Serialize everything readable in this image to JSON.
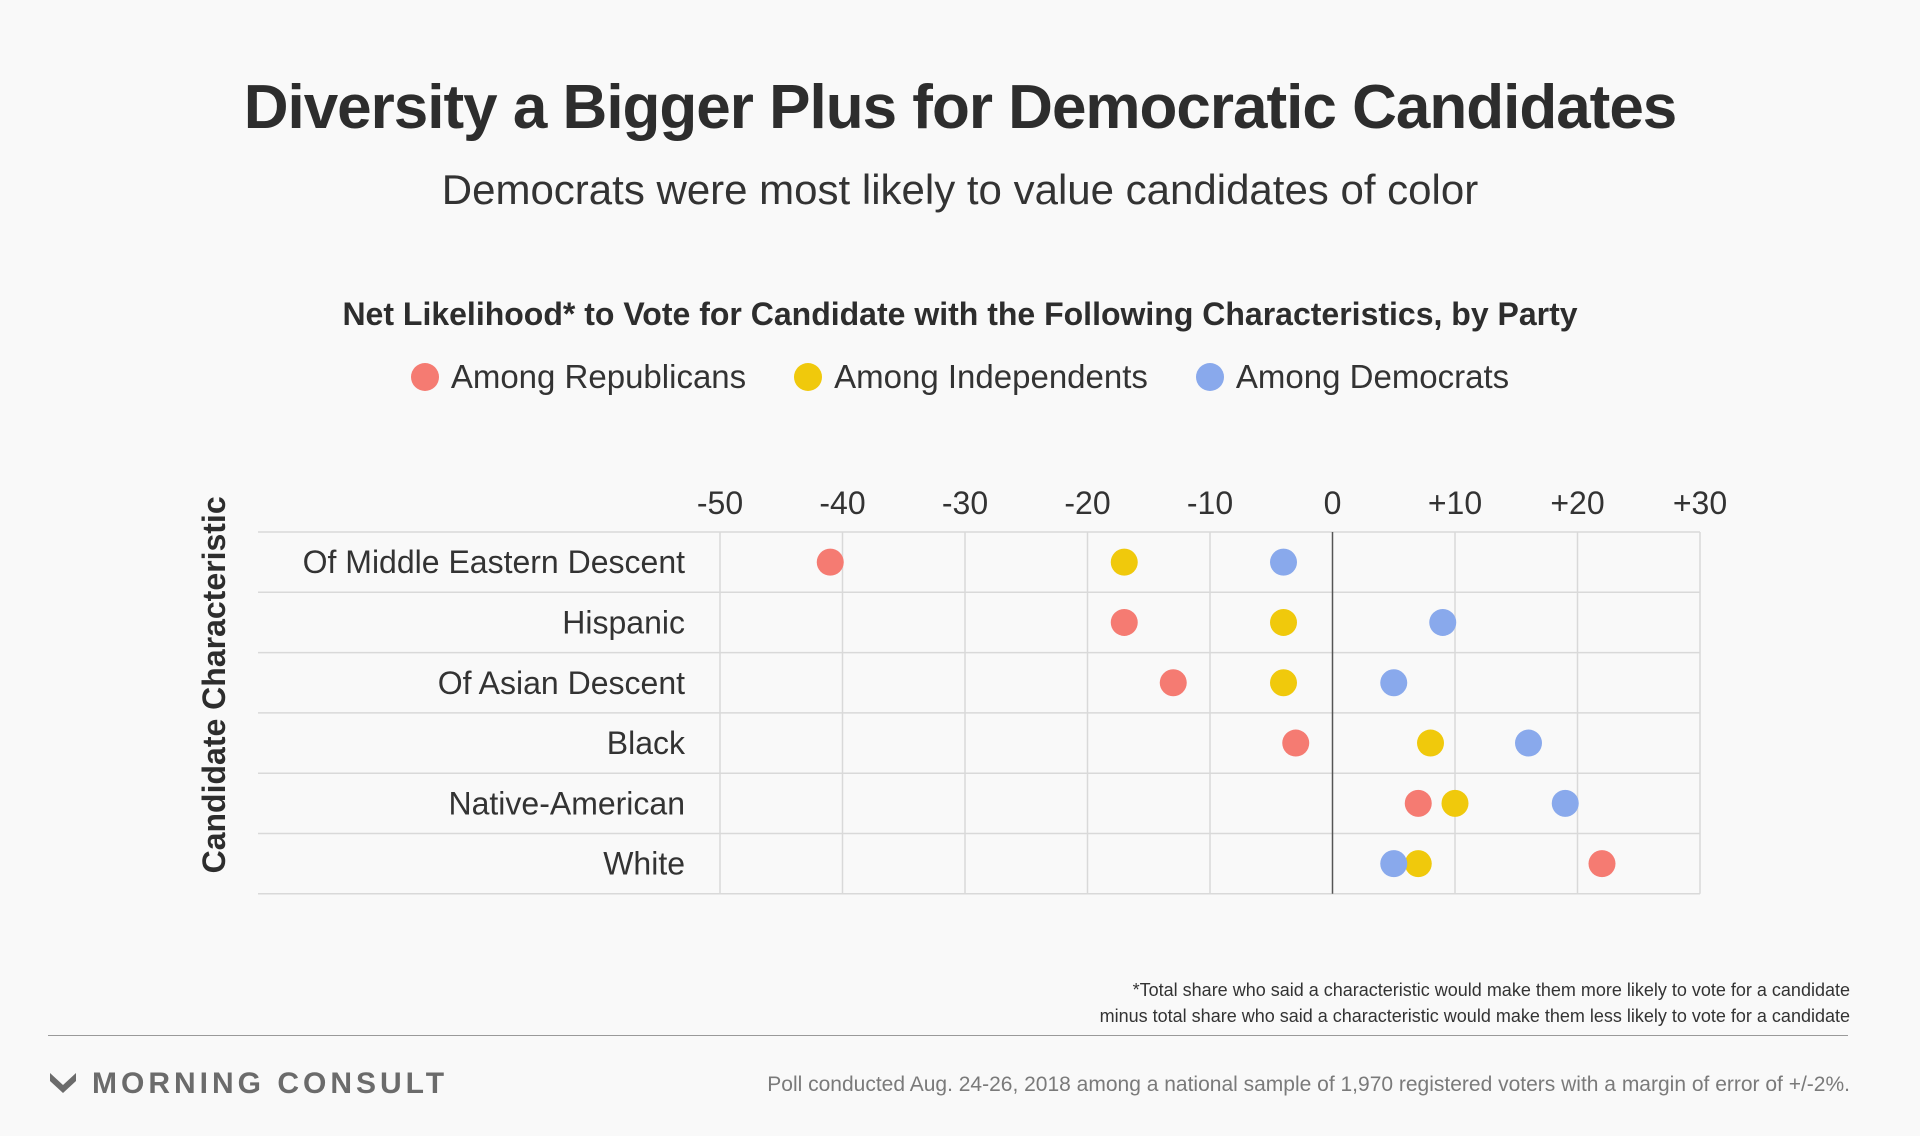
{
  "header": {
    "title": "Diversity a Bigger Plus for Democratic Candidates",
    "subtitle": "Democrats were most likely to value candidates of color"
  },
  "footer": {
    "footnote_line1": "*Total share who said a characteristic would make them more likely to vote for a candidate",
    "footnote_line2": "minus total share who said a characteristic would make them less likely to vote for a candidate",
    "brand": "MORNING CONSULT",
    "source": "Poll conducted Aug. 24-26, 2018 among a national sample of 1,970 registered voters with a margin of error of +/-2%."
  },
  "chart_data": {
    "type": "scatter",
    "title": "Net Likelihood* to Vote for Candidate with the Following Characteristics, by Party",
    "ylabel": "Candidate Characteristic",
    "xlim": [
      -50,
      30
    ],
    "xticks": [
      -50,
      -40,
      -30,
      -20,
      -10,
      0,
      10,
      20,
      30
    ],
    "xtick_labels": [
      "-50",
      "-40",
      "-30",
      "-20",
      "-10",
      "0",
      "+10",
      "+20",
      "+30"
    ],
    "grid": true,
    "legend_position": "top-center",
    "categories": [
      "Of Middle Eastern Descent",
      "Hispanic",
      "Of Asian Descent",
      "Black",
      "Native-American",
      "White"
    ],
    "series": [
      {
        "name": "Among Republicans",
        "color": "#f57b72",
        "values": [
          -41,
          -17,
          -13,
          -3,
          7,
          22
        ]
      },
      {
        "name": "Among Independents",
        "color": "#f0c90c",
        "values": [
          -17,
          -4,
          -4,
          8,
          10,
          7
        ]
      },
      {
        "name": "Among Democrats",
        "color": "#89a9ec",
        "values": [
          -4,
          9,
          5,
          16,
          19,
          5
        ]
      }
    ]
  }
}
